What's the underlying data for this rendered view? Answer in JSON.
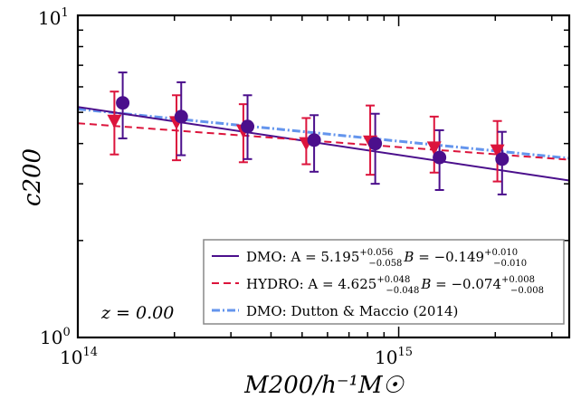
{
  "chart_data": {
    "type": "scatter",
    "title": "",
    "xlabel": "M200/h⁻¹M☉",
    "ylabel": "c200",
    "x_scale": "log",
    "y_scale": "log",
    "xlim": [
      100000000000000.0,
      3400000000000000.0
    ],
    "ylim": [
      1,
      10
    ],
    "x_ticks": [
      {
        "base": "10",
        "exp": "14",
        "value": 100000000000000.0
      },
      {
        "base": "10",
        "exp": "15",
        "value": 1000000000000000.0
      }
    ],
    "y_ticks": [
      {
        "base": "10",
        "exp": "0",
        "value": 1
      },
      {
        "base": "10",
        "exp": "1",
        "value": 10
      }
    ],
    "annotation": "z = 0.00",
    "colors": {
      "dmo": "#4b0f8c",
      "hydro": "#dc143c",
      "dutton": "#6495ed"
    },
    "series": [
      {
        "name": "DMO",
        "legend_label": "DMO: A = 5.195",
        "legend_A": "5.195",
        "legend_A_sup": "+0.056",
        "legend_A_sub": "−0.058",
        "legend_B": "−0.149",
        "legend_B_sup": "+0.010",
        "legend_B_sub": "−0.010",
        "marker": "circle",
        "fit": {
          "A": 5.195,
          "B": -0.149,
          "pivot": 100000000000000.0
        },
        "points": [
          {
            "x": 138000000000000.0,
            "y": 5.35,
            "ylo": 4.15,
            "yhi": 6.65
          },
          {
            "x": 210000000000000.0,
            "y": 4.85,
            "ylo": 3.68,
            "yhi": 6.2
          },
          {
            "x": 338000000000000.0,
            "y": 4.52,
            "ylo": 3.58,
            "yhi": 5.65
          },
          {
            "x": 545000000000000.0,
            "y": 4.1,
            "ylo": 3.27,
            "yhi": 4.9
          },
          {
            "x": 845000000000000.0,
            "y": 4.0,
            "ylo": 3.0,
            "yhi": 4.95
          },
          {
            "x": 1340000000000000.0,
            "y": 3.62,
            "ylo": 2.87,
            "yhi": 4.4
          },
          {
            "x": 2100000000000000.0,
            "y": 3.58,
            "ylo": 2.78,
            "yhi": 4.35
          }
        ]
      },
      {
        "name": "HYDRO",
        "legend_label": "HYDRO: A = 4.625",
        "legend_A": "4.625",
        "legend_A_sup": "+0.048",
        "legend_A_sub": "−0.048",
        "legend_B": "−0.074",
        "legend_B_sup": "+0.008",
        "legend_B_sub": "−0.008",
        "marker": "triangle-down",
        "fit": {
          "A": 4.625,
          "B": -0.074,
          "pivot": 100000000000000.0
        },
        "points": [
          {
            "x": 130000000000000.0,
            "y": 4.7,
            "ylo": 3.7,
            "yhi": 5.8
          },
          {
            "x": 203000000000000.0,
            "y": 4.65,
            "ylo": 3.55,
            "yhi": 5.65
          },
          {
            "x": 328000000000000.0,
            "y": 4.38,
            "ylo": 3.5,
            "yhi": 5.3
          },
          {
            "x": 515000000000000.0,
            "y": 4.0,
            "ylo": 3.45,
            "yhi": 4.8
          },
          {
            "x": 815000000000000.0,
            "y": 4.05,
            "ylo": 3.2,
            "yhi": 5.25
          },
          {
            "x": 1290000000000000.0,
            "y": 3.88,
            "ylo": 3.25,
            "yhi": 4.85
          },
          {
            "x": 2030000000000000.0,
            "y": 3.8,
            "ylo": 3.05,
            "yhi": 4.7
          }
        ]
      },
      {
        "name": "DMO: Dutton & Maccio (2014)",
        "legend_label": "DMO: Dutton & Maccio (2014)",
        "marker": "none",
        "line": {
          "x": [
            100000000000000.0,
            3400000000000000.0
          ],
          "y": [
            5.12,
            3.6
          ]
        }
      }
    ]
  }
}
